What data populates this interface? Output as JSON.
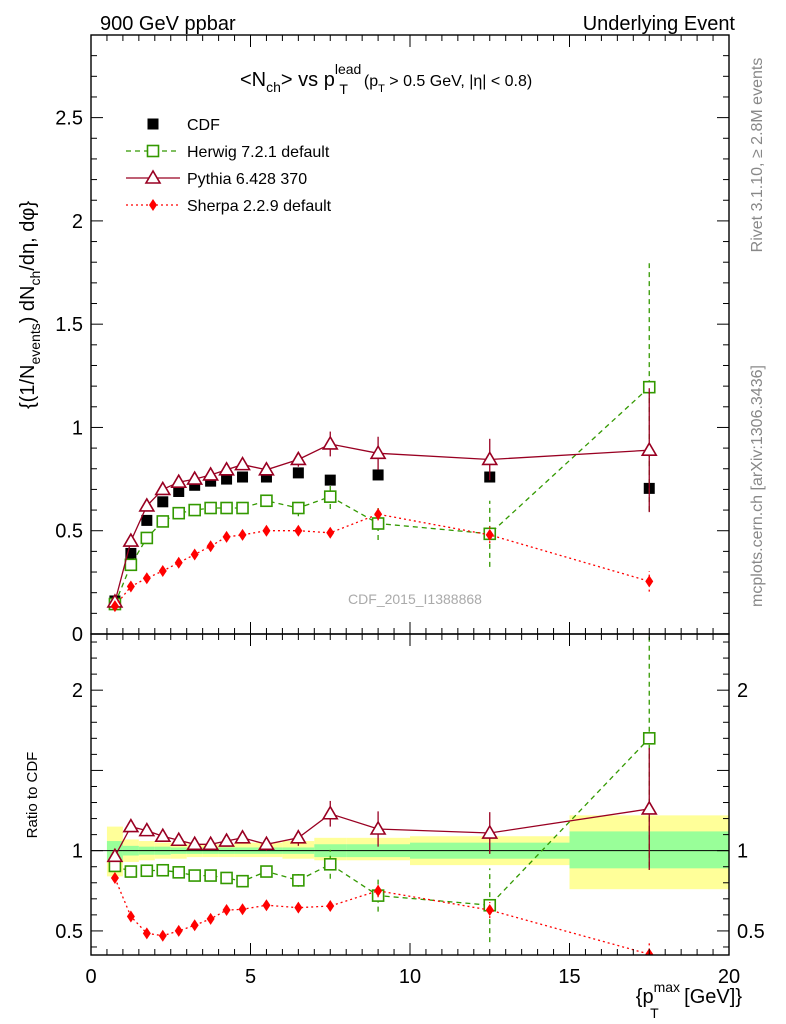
{
  "header": {
    "left": "900 GeV ppbar",
    "right": "Underlying Event"
  },
  "side_labels": {
    "rivet": "Rivet 3.1.10, ≥ 2.8M events",
    "mcplots": "mcplots.cern.ch [arXiv:1306.3436]"
  },
  "colors": {
    "cdf": "#000000",
    "herwig": "#339900",
    "pythia": "#990022",
    "sherpa": "#ff0000",
    "band_inner": "#99ff99",
    "band_outer": "#ffff99"
  },
  "chart_data": [
    {
      "type": "scatter",
      "title": {
        "part1": "<N",
        "sub1": "ch",
        "part2": "> vs p",
        "sup2": "lead",
        "sub2": "T",
        "cut1": "(p",
        "cut_sub": "T",
        "cut2": " > 0.5 GeV, |η| < 0.8)"
      },
      "ylabel": {
        "t1": "{(1/N",
        "s1": "events",
        "t2": ") dN",
        "s2": "ch",
        "t3": "/dη, dφ}"
      },
      "watermark": "CDF_2015_I1388868",
      "xlim": [
        0,
        20
      ],
      "ylim": [
        0,
        2.9
      ],
      "yticks": [
        {
          "value": 0,
          "label": "0"
        },
        {
          "value": 0.5,
          "label": "0.5"
        },
        {
          "value": 1,
          "label": "1"
        },
        {
          "value": 1.5,
          "label": "1.5"
        },
        {
          "value": 2,
          "label": "2"
        },
        {
          "value": 2.5,
          "label": "2.5"
        }
      ],
      "legend": {
        "placement": "top-left",
        "entries": [
          {
            "label": "CDF",
            "series": "cdf"
          },
          {
            "label": "Herwig 7.2.1 default",
            "series": "herwig"
          },
          {
            "label": "Pythia 6.428 370",
            "series": "pythia"
          },
          {
            "label": "Sherpa 2.2.9 default",
            "series": "sherpa"
          }
        ]
      },
      "series": [
        {
          "name": "CDF",
          "key": "cdf",
          "marker": "filled-square",
          "line": "none",
          "x": [
            0.75,
            1.25,
            1.75,
            2.25,
            2.75,
            3.25,
            3.75,
            4.25,
            4.75,
            5.5,
            6.5,
            7.5,
            9.0,
            12.5,
            17.5
          ],
          "y": [
            0.16,
            0.39,
            0.55,
            0.64,
            0.69,
            0.72,
            0.74,
            0.75,
            0.76,
            0.76,
            0.78,
            0.745,
            0.77,
            0.76,
            0.705
          ],
          "err": [
            0.006,
            0.008,
            0.008,
            0.008,
            0.008,
            0.008,
            0.008,
            0.008,
            0.008,
            0.008,
            0.01,
            0.01,
            0.01,
            0.015,
            0.02
          ]
        },
        {
          "name": "Herwig 7.2.1 default",
          "key": "herwig",
          "marker": "open-square",
          "line": "dashed",
          "x": [
            0.75,
            1.25,
            1.75,
            2.25,
            2.75,
            3.25,
            3.75,
            4.25,
            4.75,
            5.5,
            6.5,
            7.5,
            9.0,
            12.5,
            17.5
          ],
          "y": [
            0.145,
            0.335,
            0.465,
            0.545,
            0.585,
            0.6,
            0.61,
            0.61,
            0.61,
            0.645,
            0.61,
            0.665,
            0.535,
            0.485,
            1.195
          ],
          "err": [
            0.005,
            0.01,
            0.01,
            0.01,
            0.01,
            0.01,
            0.015,
            0.02,
            0.02,
            0.025,
            0.04,
            0.06,
            0.08,
            0.16,
            0.6
          ]
        },
        {
          "name": "Pythia 6.428 370",
          "key": "pythia",
          "marker": "open-triangle",
          "line": "solid",
          "x": [
            0.75,
            1.25,
            1.75,
            2.25,
            2.75,
            3.25,
            3.75,
            4.25,
            4.75,
            5.5,
            6.5,
            7.5,
            9.0,
            12.5,
            17.5
          ],
          "y": [
            0.155,
            0.45,
            0.62,
            0.7,
            0.735,
            0.75,
            0.77,
            0.795,
            0.82,
            0.795,
            0.845,
            0.92,
            0.875,
            0.845,
            0.89
          ],
          "err": [
            0.005,
            0.01,
            0.01,
            0.01,
            0.015,
            0.015,
            0.02,
            0.02,
            0.025,
            0.025,
            0.035,
            0.06,
            0.08,
            0.1,
            0.3
          ]
        },
        {
          "name": "Sherpa 2.2.9 default",
          "key": "sherpa",
          "marker": "filled-diamond",
          "line": "dotted",
          "x": [
            0.75,
            1.25,
            1.75,
            2.25,
            2.75,
            3.25,
            3.75,
            4.25,
            4.75,
            5.5,
            6.5,
            7.5,
            9.0,
            12.5,
            17.5
          ],
          "y": [
            0.135,
            0.23,
            0.27,
            0.305,
            0.345,
            0.385,
            0.425,
            0.47,
            0.48,
            0.5,
            0.5,
            0.49,
            0.58,
            0.48,
            0.255
          ],
          "err": [
            0.004,
            0.006,
            0.006,
            0.006,
            0.008,
            0.008,
            0.01,
            0.01,
            0.012,
            0.012,
            0.015,
            0.02,
            0.03,
            0.04,
            0.05
          ]
        }
      ]
    },
    {
      "type": "scatter",
      "ylabel": "Ratio to CDF",
      "xlabel": {
        "t1": "{p",
        "sup": "max",
        "sub": "T",
        "t2": " [GeV]}"
      },
      "xlim": [
        0,
        20
      ],
      "ylim": [
        0.35,
        2.35
      ],
      "xticks": [
        {
          "value": 0,
          "label": "0"
        },
        {
          "value": 5,
          "label": "5"
        },
        {
          "value": 10,
          "label": "10"
        },
        {
          "value": 15,
          "label": "15"
        },
        {
          "value": 20,
          "label": "20"
        }
      ],
      "yticks": [
        {
          "value": 0.5,
          "label": "0.5"
        },
        {
          "value": 1,
          "label": "1"
        },
        {
          "value": 2,
          "label": "2"
        }
      ],
      "reference_line": 1,
      "bands": {
        "edges": [
          0.5,
          1.0,
          1.5,
          2.0,
          2.5,
          3.0,
          3.5,
          4.0,
          4.5,
          5.0,
          6.0,
          7.0,
          8.0,
          10.0,
          15.0,
          20.0
        ],
        "inner": [
          [
            0.94,
            1.06
          ],
          [
            0.97,
            1.03
          ],
          [
            0.975,
            1.025
          ],
          [
            0.975,
            1.025
          ],
          [
            0.98,
            1.02
          ],
          [
            0.98,
            1.02
          ],
          [
            0.98,
            1.02
          ],
          [
            0.98,
            1.02
          ],
          [
            0.98,
            1.02
          ],
          [
            0.98,
            1.02
          ],
          [
            0.98,
            1.02
          ],
          [
            0.96,
            1.04
          ],
          [
            0.96,
            1.04
          ],
          [
            0.95,
            1.05
          ],
          [
            0.89,
            1.12
          ]
        ],
        "outer": [
          [
            0.84,
            1.15
          ],
          [
            0.93,
            1.07
          ],
          [
            0.94,
            1.06
          ],
          [
            0.95,
            1.05
          ],
          [
            0.95,
            1.05
          ],
          [
            0.96,
            1.04
          ],
          [
            0.96,
            1.04
          ],
          [
            0.96,
            1.04
          ],
          [
            0.96,
            1.05
          ],
          [
            0.96,
            1.05
          ],
          [
            0.95,
            1.06
          ],
          [
            0.94,
            1.08
          ],
          [
            0.94,
            1.08
          ],
          [
            0.91,
            1.09
          ],
          [
            0.76,
            1.22
          ]
        ]
      },
      "series": [
        {
          "name": "Herwig 7.2.1 default",
          "key": "herwig",
          "marker": "open-square",
          "line": "dashed",
          "x": [
            0.75,
            1.25,
            1.75,
            2.25,
            2.75,
            3.25,
            3.75,
            4.25,
            4.75,
            5.5,
            6.5,
            7.5,
            9.0,
            12.5,
            17.5
          ],
          "y": [
            0.905,
            0.87,
            0.875,
            0.878,
            0.865,
            0.845,
            0.845,
            0.83,
            0.81,
            0.87,
            0.815,
            0.915,
            0.72,
            0.66,
            1.7
          ],
          "err": [
            0.02,
            0.02,
            0.02,
            0.02,
            0.02,
            0.02,
            0.02,
            0.025,
            0.025,
            0.03,
            0.04,
            0.09,
            0.1,
            0.23,
            0.8
          ]
        },
        {
          "name": "Pythia 6.428 370",
          "key": "pythia",
          "marker": "open-triangle",
          "line": "solid",
          "x": [
            0.75,
            1.25,
            1.75,
            2.25,
            2.75,
            3.25,
            3.75,
            4.25,
            4.75,
            5.5,
            6.5,
            7.5,
            9.0,
            12.5,
            17.5
          ],
          "y": [
            0.965,
            1.15,
            1.125,
            1.09,
            1.065,
            1.04,
            1.04,
            1.06,
            1.08,
            1.04,
            1.08,
            1.23,
            1.135,
            1.11,
            1.26
          ],
          "err": [
            0.03,
            0.03,
            0.03,
            0.03,
            0.03,
            0.03,
            0.03,
            0.03,
            0.03,
            0.04,
            0.05,
            0.08,
            0.11,
            0.13,
            0.38
          ]
        },
        {
          "name": "Sherpa 2.2.9 default",
          "key": "sherpa",
          "marker": "filled-diamond",
          "line": "dotted",
          "x": [
            0.75,
            1.25,
            1.75,
            2.25,
            2.75,
            3.25,
            3.75,
            4.25,
            4.75,
            5.5,
            6.5,
            7.5,
            9.0,
            12.5,
            17.5
          ],
          "y": [
            0.83,
            0.59,
            0.485,
            0.47,
            0.5,
            0.535,
            0.575,
            0.63,
            0.635,
            0.66,
            0.645,
            0.655,
            0.75,
            0.63,
            0.355
          ],
          "err": [
            0.02,
            0.02,
            0.015,
            0.015,
            0.015,
            0.02,
            0.02,
            0.02,
            0.02,
            0.025,
            0.025,
            0.03,
            0.04,
            0.05,
            0.07
          ]
        }
      ]
    }
  ]
}
